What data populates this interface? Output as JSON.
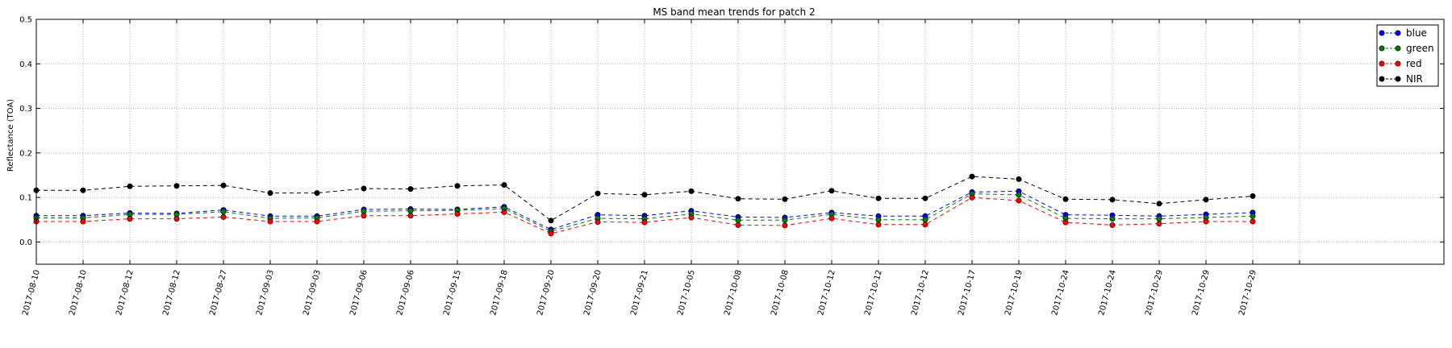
{
  "chart_data": {
    "type": "line",
    "title": "MS band mean trends for patch 2",
    "xlabel": "",
    "ylabel": "Reflectance (TOA)",
    "ylim": [
      -0.05,
      0.5
    ],
    "yticks": [
      "0.0",
      "0.1",
      "0.2",
      "0.3",
      "0.4",
      "0.5"
    ],
    "grid": true,
    "legend_position": "top-right",
    "categories": [
      "2017-08-10",
      "2017-08-10",
      "2017-08-12",
      "2017-08-12",
      "2017-08-27",
      "2017-09-03",
      "2017-09-03",
      "2017-09-06",
      "2017-09-06",
      "2017-09-15",
      "2017-09-18",
      "2017-09-20",
      "2017-09-20",
      "2017-09-21",
      "2017-10-05",
      "2017-10-08",
      "2017-10-08",
      "2017-10-12",
      "2017-10-12",
      "2017-10-12",
      "2017-10-17",
      "2017-10-19",
      "2017-10-24",
      "2017-10-24",
      "2017-10-29",
      "2017-10-29",
      "2017-10-29"
    ],
    "series": [
      {
        "name": "blue",
        "color": "#0000ff",
        "values": [
          0.059,
          0.059,
          0.065,
          0.064,
          0.072,
          0.058,
          0.058,
          0.073,
          0.074,
          0.073,
          0.079,
          0.028,
          0.061,
          0.059,
          0.07,
          0.056,
          0.055,
          0.066,
          0.058,
          0.058,
          0.112,
          0.114,
          0.061,
          0.06,
          0.058,
          0.062,
          0.066
        ]
      },
      {
        "name": "green",
        "color": "#007f00",
        "values": [
          0.054,
          0.054,
          0.062,
          0.062,
          0.068,
          0.053,
          0.054,
          0.069,
          0.07,
          0.071,
          0.075,
          0.024,
          0.053,
          0.052,
          0.063,
          0.049,
          0.049,
          0.062,
          0.05,
          0.05,
          0.108,
          0.106,
          0.053,
          0.052,
          0.052,
          0.055,
          0.058
        ]
      },
      {
        "name": "red",
        "color": "#ff0000",
        "values": [
          0.046,
          0.046,
          0.052,
          0.052,
          0.056,
          0.046,
          0.046,
          0.059,
          0.059,
          0.063,
          0.067,
          0.019,
          0.045,
          0.044,
          0.055,
          0.038,
          0.037,
          0.053,
          0.039,
          0.039,
          0.1,
          0.093,
          0.044,
          0.038,
          0.041,
          0.046,
          0.046
        ]
      },
      {
        "name": "NIR",
        "color": "#000000",
        "values": [
          0.116,
          0.116,
          0.125,
          0.126,
          0.127,
          0.11,
          0.11,
          0.12,
          0.119,
          0.126,
          0.128,
          0.048,
          0.109,
          0.106,
          0.114,
          0.097,
          0.096,
          0.115,
          0.098,
          0.098,
          0.147,
          0.141,
          0.096,
          0.095,
          0.086,
          0.095,
          0.103
        ]
      }
    ]
  }
}
